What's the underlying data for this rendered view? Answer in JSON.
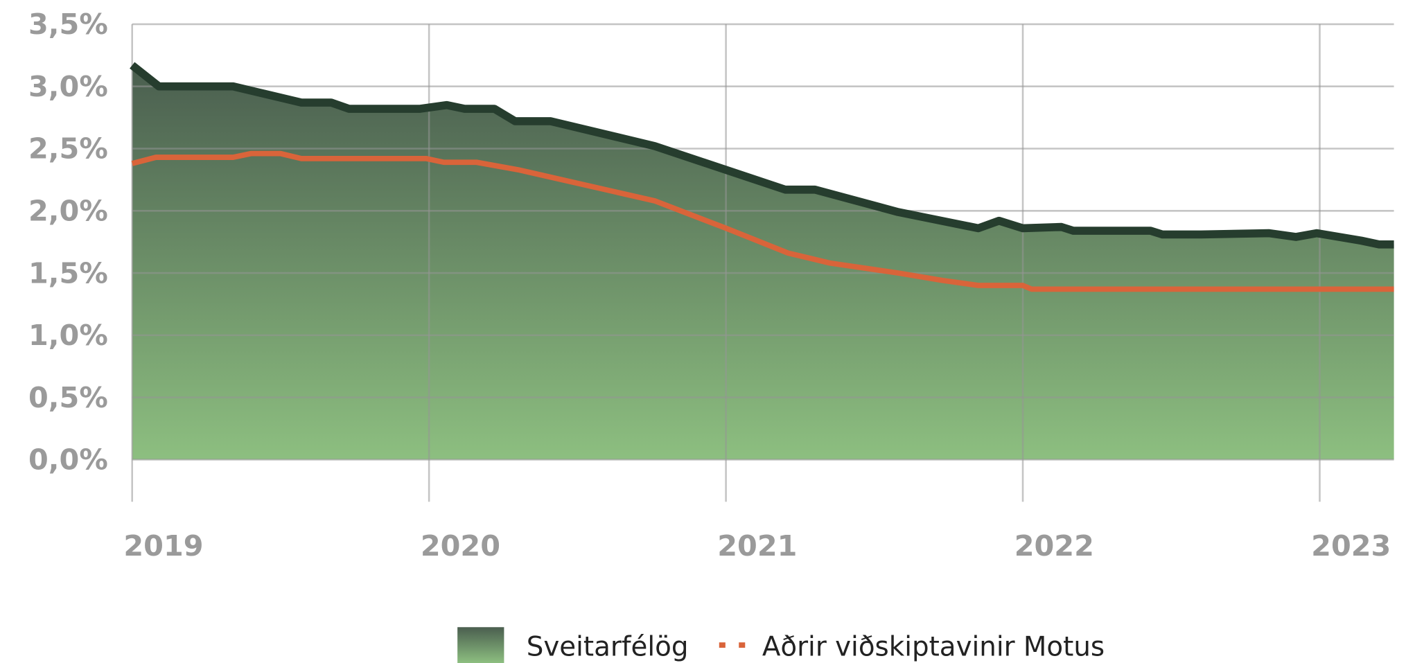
{
  "chart_data": {
    "type": "area_line",
    "xlim": [
      2019,
      2023.25
    ],
    "xticks": [
      2019,
      2020,
      2021,
      2022,
      2023
    ],
    "ylim": [
      0,
      3.5
    ],
    "yticks": [
      {
        "value": 0,
        "label": "0,0%"
      },
      {
        "value": 0.5,
        "label": "0,5%"
      },
      {
        "value": 1,
        "label": "1,0%"
      },
      {
        "value": 1.5,
        "label": "1,5%"
      },
      {
        "value": 2,
        "label": "2,0%"
      },
      {
        "value": 2.5,
        "label": "2,5%"
      },
      {
        "value": 3,
        "label": "3,0%"
      },
      {
        "value": 3.5,
        "label": "3,5%"
      }
    ],
    "grid": true,
    "legend": "bottom",
    "series": [
      {
        "name": "Sveitarfélög",
        "color": "#263d2e",
        "fill_top": "#4a5e4f",
        "fill_bottom": "#8dbf80",
        "x": [
          2019.0,
          2019.09,
          2019.34,
          2019.57,
          2019.67,
          2019.73,
          2019.97,
          2020.06,
          2020.12,
          2020.22,
          2020.29,
          2020.41,
          2020.76,
          2021.2,
          2021.3,
          2021.58,
          2021.85,
          2021.92,
          2022.0,
          2022.13,
          2022.17,
          2022.43,
          2022.47,
          2022.6,
          2022.83,
          2022.92,
          2022.99,
          2023.14,
          2023.2,
          2023.25
        ],
        "values": [
          3.17,
          3.0,
          3.0,
          2.87,
          2.87,
          2.82,
          2.82,
          2.85,
          2.82,
          2.82,
          2.72,
          2.72,
          2.52,
          2.17,
          2.17,
          1.99,
          1.86,
          1.92,
          1.86,
          1.87,
          1.84,
          1.84,
          1.81,
          1.81,
          1.82,
          1.79,
          1.82,
          1.76,
          1.73,
          1.73
        ]
      },
      {
        "name": "Aðrir viðskiptavinir Motus",
        "color": "#d9643a",
        "x": [
          2019.0,
          2019.08,
          2019.34,
          2019.4,
          2019.5,
          2019.57,
          2019.99,
          2020.05,
          2020.16,
          2020.3,
          2020.76,
          2021.0,
          2021.21,
          2021.35,
          2021.58,
          2021.73,
          2021.85,
          2022.0,
          2022.03,
          2023.25
        ],
        "values": [
          2.38,
          2.43,
          2.43,
          2.46,
          2.46,
          2.42,
          2.42,
          2.39,
          2.39,
          2.33,
          2.08,
          1.86,
          1.66,
          1.58,
          1.5,
          1.44,
          1.4,
          1.4,
          1.37,
          1.37
        ]
      }
    ]
  }
}
